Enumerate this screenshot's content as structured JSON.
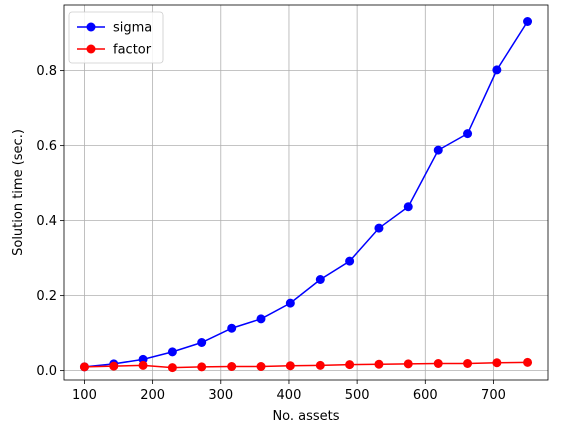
{
  "chart_data": {
    "type": "line",
    "title": "",
    "xlabel": "No. assets",
    "ylabel": "Solution time (sec.)",
    "xlim": [
      70,
      780
    ],
    "ylim": [
      -0.025,
      0.975
    ],
    "xticks": [
      100,
      200,
      300,
      400,
      500,
      600,
      700
    ],
    "yticks": [
      0.0,
      0.2,
      0.4,
      0.6,
      0.8
    ],
    "grid": true,
    "legend_position": "top-left",
    "x": [
      100,
      143,
      186,
      229,
      272,
      316,
      359,
      402,
      446,
      489,
      532,
      575,
      619,
      662,
      705,
      750
    ],
    "series": [
      {
        "name": "sigma",
        "color": "#0000ff",
        "marker": "circle",
        "values": [
          0.01,
          0.018,
          0.03,
          0.05,
          0.075,
          0.113,
          0.138,
          0.18,
          0.243,
          0.292,
          0.38,
          0.437,
          0.588,
          0.632,
          0.802,
          0.931
        ]
      },
      {
        "name": "factor",
        "color": "#ff0000",
        "marker": "circle",
        "values": [
          0.01,
          0.012,
          0.014,
          0.008,
          0.01,
          0.011,
          0.011,
          0.013,
          0.014,
          0.016,
          0.017,
          0.018,
          0.019,
          0.019,
          0.021,
          0.022
        ]
      }
    ]
  }
}
